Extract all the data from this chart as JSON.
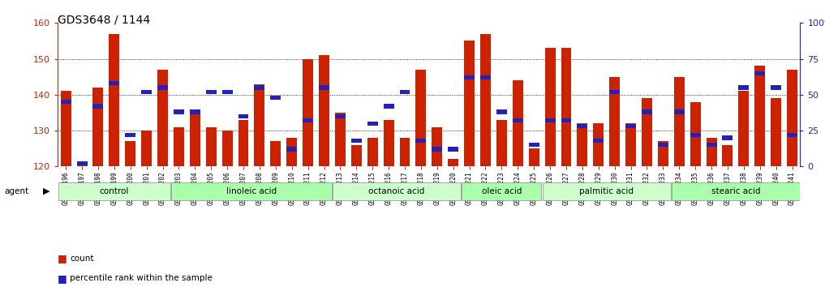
{
  "title": "GDS3648 / 1144",
  "categories": [
    "GSM525196",
    "GSM525197",
    "GSM525198",
    "GSM525199",
    "GSM525200",
    "GSM525201",
    "GSM525202",
    "GSM525203",
    "GSM525204",
    "GSM525205",
    "GSM525206",
    "GSM525207",
    "GSM525208",
    "GSM525209",
    "GSM525210",
    "GSM525211",
    "GSM525212",
    "GSM525213",
    "GSM525214",
    "GSM525215",
    "GSM525216",
    "GSM525217",
    "GSM525218",
    "GSM525219",
    "GSM525220",
    "GSM525221",
    "GSM525222",
    "GSM525223",
    "GSM525224",
    "GSM525225",
    "GSM525226",
    "GSM525227",
    "GSM525228",
    "GSM525229",
    "GSM525230",
    "GSM525231",
    "GSM525232",
    "GSM525233",
    "GSM525234",
    "GSM525235",
    "GSM525236",
    "GSM525237",
    "GSM525238",
    "GSM525239",
    "GSM525240",
    "GSM525241"
  ],
  "counts": [
    141,
    121,
    142,
    157,
    127,
    130,
    147,
    131,
    135,
    131,
    130,
    133,
    143,
    127,
    128,
    150,
    151,
    135,
    126,
    128,
    133,
    128,
    147,
    131,
    122,
    155,
    157,
    133,
    144,
    125,
    153,
    153,
    132,
    132,
    145,
    132,
    139,
    127,
    145,
    138,
    128,
    126,
    141,
    148,
    139,
    147
  ],
  "percentiles": [
    45,
    2,
    42,
    58,
    22,
    52,
    55,
    38,
    38,
    52,
    52,
    35,
    55,
    48,
    12,
    32,
    55,
    35,
    18,
    30,
    42,
    52,
    18,
    12,
    12,
    62,
    62,
    38,
    32,
    15,
    32,
    32,
    28,
    18,
    52,
    28,
    38,
    15,
    38,
    22,
    15,
    20,
    55,
    65,
    55,
    22
  ],
  "groups": [
    {
      "label": "control",
      "start": 0,
      "end": 6,
      "color": "#ccffcc"
    },
    {
      "label": "linoleic acid",
      "start": 7,
      "end": 16,
      "color": "#aaffaa"
    },
    {
      "label": "octanoic acid",
      "start": 17,
      "end": 24,
      "color": "#ccffcc"
    },
    {
      "label": "oleic acid",
      "start": 25,
      "end": 29,
      "color": "#aaffaa"
    },
    {
      "label": "palmitic acid",
      "start": 30,
      "end": 37,
      "color": "#ccffcc"
    },
    {
      "label": "stearic acid",
      "start": 38,
      "end": 45,
      "color": "#aaffaa"
    }
  ],
  "bar_color": "#cc2200",
  "blue_color": "#2222bb",
  "ymin": 120,
  "ymax": 160,
  "yticks": [
    120,
    130,
    140,
    150,
    160
  ],
  "right_yticks": [
    0,
    25,
    50,
    75,
    100
  ],
  "background_color": "#ffffff",
  "tick_label_color": "#cc2200",
  "right_tick_color": "#2222bb",
  "title_fontsize": 10,
  "bar_width": 0.65
}
